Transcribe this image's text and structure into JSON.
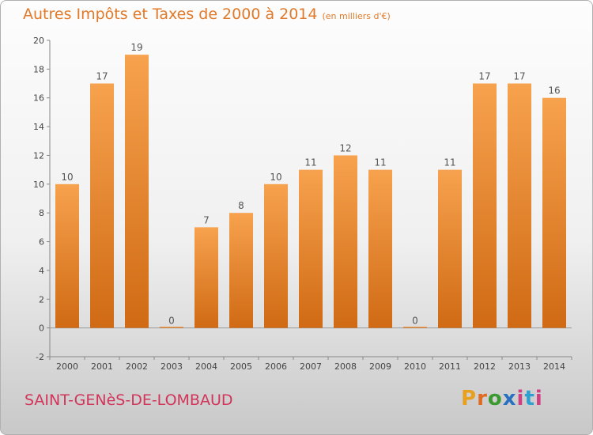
{
  "header": {
    "title": "Autres Impôts et Taxes de 2000 à 2014",
    "unit": "(en milliers d'€)"
  },
  "footer": {
    "commune": "SAINT-GENèS-DE-LOMBAUD",
    "logo": "Proxiti"
  },
  "colors": {
    "bar_light": "#f7a24e",
    "bar_dark": "#d06a14",
    "title": "#e07a2a",
    "commune": "#d3345a"
  },
  "chart_data": {
    "type": "bar",
    "title": "Autres Impôts et Taxes de 2000 à 2014",
    "subtitle": "(en milliers d'€)",
    "categories": [
      "2000",
      "2001",
      "2002",
      "2003",
      "2004",
      "2005",
      "2006",
      "2007",
      "2008",
      "2009",
      "2010",
      "2011",
      "2012",
      "2013",
      "2014"
    ],
    "values": [
      10,
      17,
      19,
      0,
      7,
      8,
      10,
      11,
      12,
      11,
      0,
      11,
      17,
      17,
      16
    ],
    "ylim": [
      -2,
      20
    ],
    "yticks": [
      -2,
      0,
      2,
      4,
      6,
      8,
      10,
      12,
      14,
      16,
      18,
      20
    ],
    "grid": false,
    "legend": "none"
  }
}
